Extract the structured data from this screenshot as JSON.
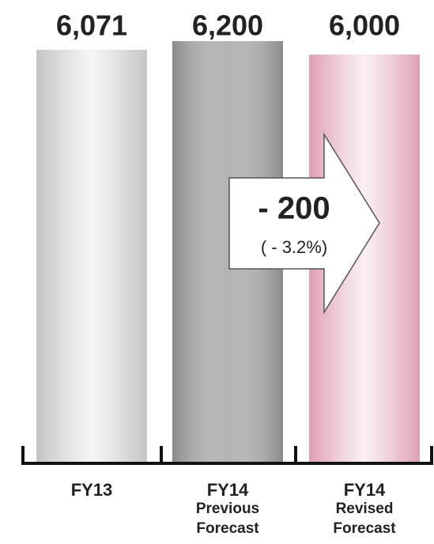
{
  "chart_data": {
    "type": "bar",
    "categories": [
      [
        "FY13"
      ],
      [
        "FY14",
        "Previous",
        "Forecast"
      ],
      [
        "FY14",
        "Revised",
        "Forecast"
      ]
    ],
    "values": [
      6071,
      6200,
      6000
    ],
    "value_labels": [
      "6,071",
      "6,200",
      "6,000"
    ],
    "colors": [
      "#c4c4c4",
      "#8a8a8a",
      "#df9fb6"
    ],
    "annotation": {
      "text": "- 200",
      "subtext": "( - 3.2%)"
    }
  }
}
